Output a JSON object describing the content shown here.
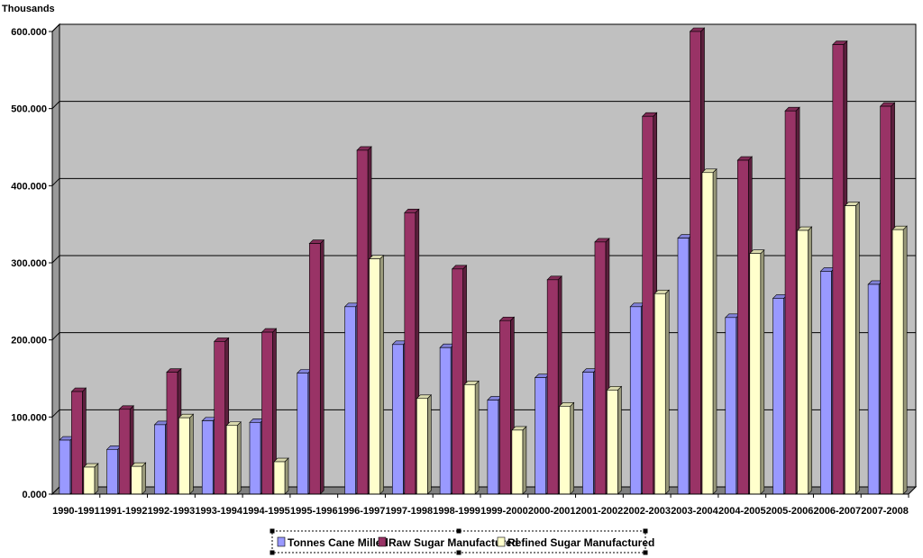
{
  "chart_data": {
    "type": "bar",
    "unit_label": "Thousands",
    "categories": [
      "1990-1991",
      "1991-1992",
      "1992-1993",
      "1993-1994",
      "1994-1995",
      "1995-1996",
      "1996-1997",
      "1997-1998",
      "1998-1999",
      "1999-2000",
      "2000-2001",
      "2001-2002",
      "2002-2003",
      "2003-2004",
      "2004-2005",
      "2005-2006",
      "2006-2007",
      "2007-2008"
    ],
    "series": [
      {
        "name": "Tonnes Cane Milled",
        "color": "#9999ff",
        "values": [
          70,
          58,
          90,
          95,
          93,
          157,
          243,
          194,
          190,
          122,
          151,
          158,
          243,
          332,
          229,
          254,
          289,
          272
        ]
      },
      {
        "name": "Raw Sugar Manufactured",
        "color": "#993366",
        "values": [
          133,
          110,
          158,
          198,
          210,
          325,
          446,
          365,
          292,
          225,
          278,
          327,
          490,
          600,
          433,
          497,
          583,
          503
        ]
      },
      {
        "name": "Refined Sugar Manufactured",
        "color": "#ffffcc",
        "values": [
          35,
          36,
          99,
          89,
          42,
          0,
          305,
          124,
          142,
          83,
          114,
          135,
          260,
          417,
          312,
          342,
          374,
          343
        ]
      }
    ],
    "y_ticks": [
      "0.000",
      "100.000",
      "200.000",
      "300.000",
      "400.000",
      "500.000",
      "600.000"
    ],
    "ylim": [
      0,
      600
    ],
    "grid": true,
    "legend_position": "bottom",
    "wall_color": "#c0c0c0"
  }
}
